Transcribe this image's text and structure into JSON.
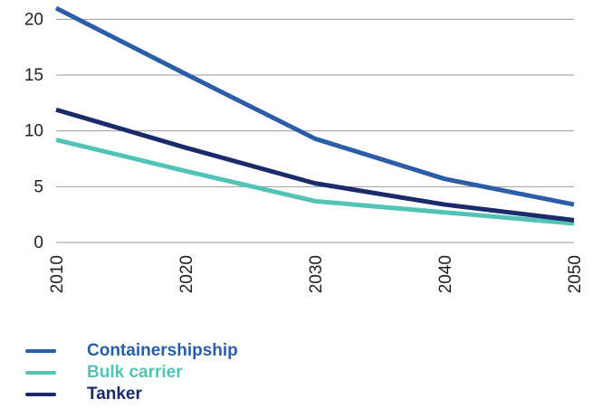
{
  "chart_data": {
    "type": "line",
    "x": [
      2010,
      2020,
      2030,
      2040,
      2050
    ],
    "x_tick_labels": [
      "2010",
      "2020",
      "2030",
      "2040",
      "2050"
    ],
    "y_tick_labels": [
      "0",
      "5",
      "10",
      "15",
      "20"
    ],
    "ylim": [
      0,
      21
    ],
    "grid": "horizontal",
    "legend_position": "bottom-left",
    "series": [
      {
        "name": "Containershipship",
        "color": "#2a5ea8",
        "values": [
          21,
          15.1,
          9.3,
          5.7,
          3.4
        ]
      },
      {
        "name": "Bulk carrier",
        "color": "#52c4b6",
        "values": [
          9.2,
          6.4,
          3.7,
          2.7,
          1.7
        ]
      },
      {
        "name": "Tanker",
        "color": "#1b2a6b",
        "values": [
          11.9,
          8.5,
          5.3,
          3.4,
          2.0
        ]
      }
    ]
  }
}
